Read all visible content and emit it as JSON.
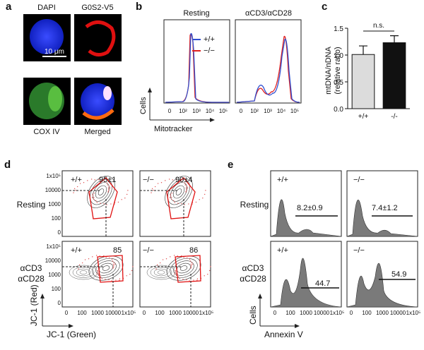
{
  "figure": {
    "a": {
      "letter": "a",
      "dapi": "DAPI",
      "g0s2": "G0S2-V5",
      "scale": "10 μm",
      "cox": "COX IV",
      "merged": "Merged"
    },
    "b": {
      "letter": "b",
      "resting": "Resting",
      "stim": "αCD3/αCD28",
      "wt": "+/+",
      "ko": "−/−",
      "ylabel": "Cells",
      "xlabel": "Mitotracker",
      "xticks": [
        "0",
        "10²",
        "10³",
        "10⁴",
        "10⁵"
      ]
    },
    "d": {
      "letter": "d",
      "resting": "Resting",
      "stim1": "αCD3",
      "stim2": "αCD28",
      "wt": "+/+",
      "ko": "−/−",
      "v_rest_wt": "95±1",
      "v_rest_ko": "90±4",
      "v_stim_wt": "85",
      "v_stim_ko": "86",
      "yticks": [
        "1x10⁵",
        "10000",
        "1000",
        "100",
        "0"
      ],
      "xticks": [
        "0",
        "100",
        "1000",
        "10000",
        "1x10⁵"
      ],
      "ylabel": "JC-1 (Red)",
      "xlabel": "JC-1 (Green)"
    },
    "e": {
      "letter": "e",
      "resting": "Resting",
      "stim1": "αCD3",
      "stim2": "αCD28",
      "wt": "+/+",
      "ko": "−/−",
      "v_rest_wt": "8.2±0.9",
      "v_rest_ko": "7.4±1.2",
      "v_stim_wt": "44.7",
      "v_stim_ko": "54.9",
      "ylabel": "Cells",
      "xlabel": "Annexin V",
      "xticks": [
        "0",
        "100",
        "1000",
        "10000",
        "1x10⁵"
      ]
    }
  },
  "chart_data": {
    "type": "bar",
    "letter": "c",
    "ylabel": [
      "mtDNA/nDNA",
      "(relative ratio)"
    ],
    "annotation": "n.s.",
    "categories": [
      "+/+",
      "-/-"
    ],
    "series": [
      {
        "values": [
          1.01,
          1.23
        ],
        "errors": [
          0.16,
          0.13
        ],
        "colors": [
          "#dcdcdc",
          "#111111"
        ]
      }
    ],
    "ylim": [
      0,
      1.5
    ],
    "yticks": [
      {
        "value": 0,
        "label": "0.0"
      },
      0.5,
      {
        "value": 1,
        "label": "1.0"
      },
      1.5
    ]
  }
}
